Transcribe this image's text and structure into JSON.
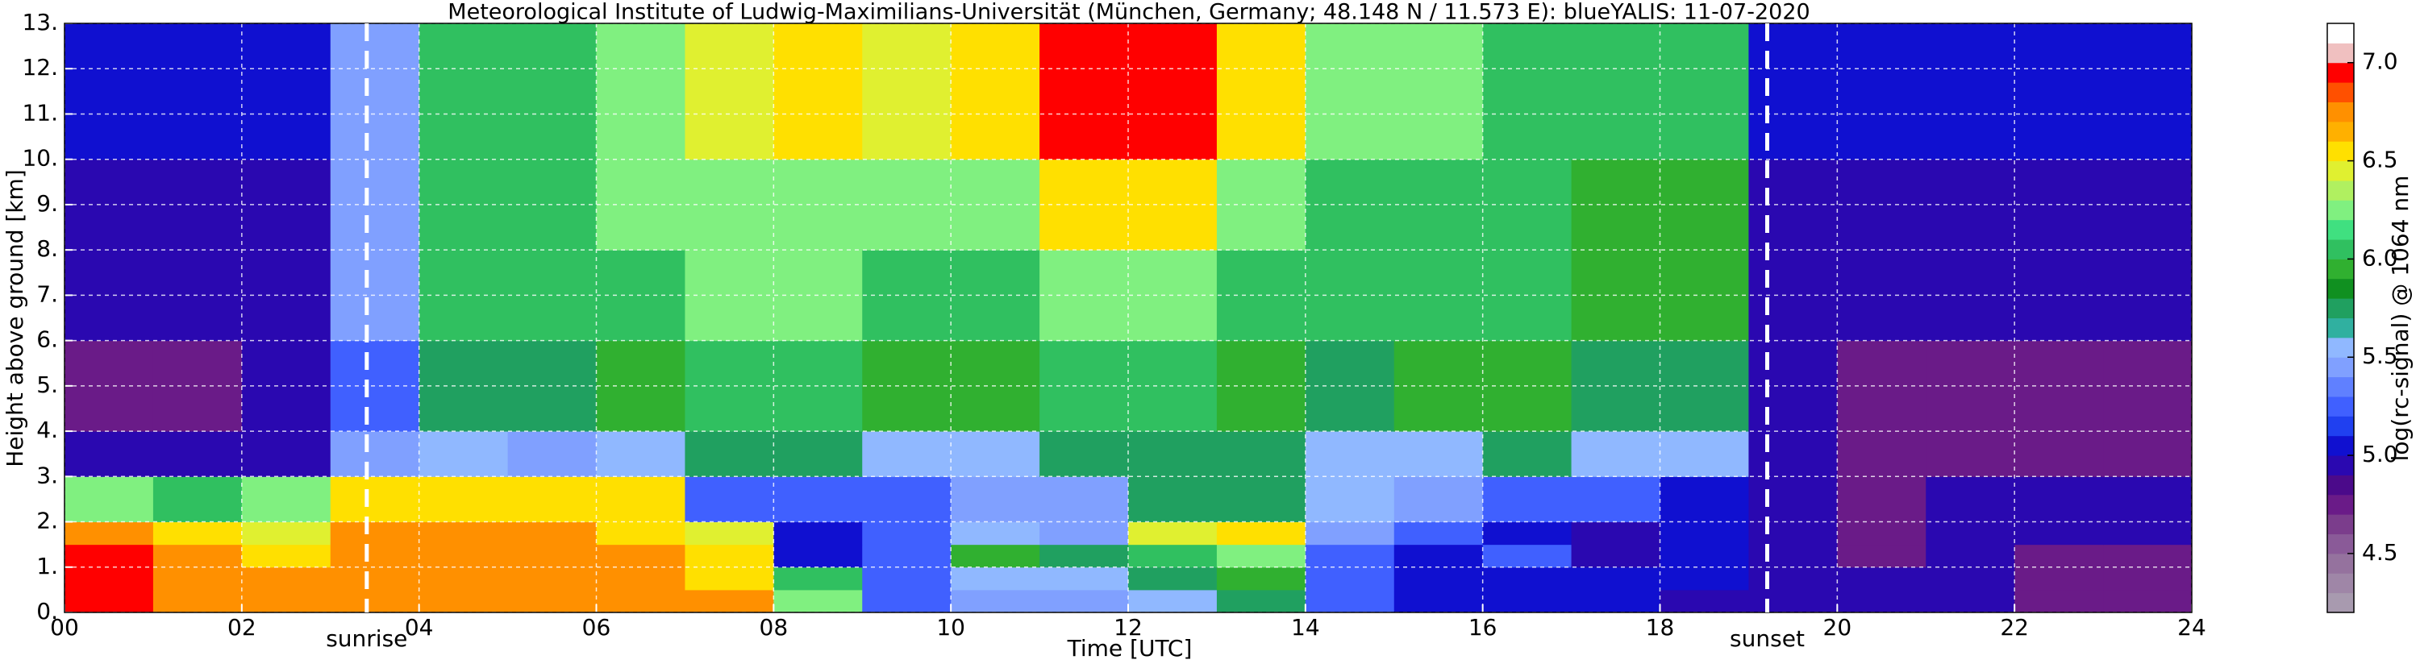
{
  "chart_data": {
    "type": "heatmap",
    "title": "Meteorological Institute of Ludwig-Maximilians-Universität (München, Germany; 48.148 N / 11.573 E):    blueYALIS: 11-07-2020",
    "x_label": "Time [UTC]",
    "y_label": "Height above ground [km]",
    "colorbar_label": "log(rc-signal) @ 1064 nm",
    "xlim": [
      0,
      24
    ],
    "xticks": [
      {
        "value": 0,
        "label": "00"
      },
      {
        "value": 2,
        "label": "02"
      },
      {
        "value": 4,
        "label": "04"
      },
      {
        "value": 6,
        "label": "06"
      },
      {
        "value": 8,
        "label": "08"
      },
      {
        "value": 10,
        "label": "10"
      },
      {
        "value": 12,
        "label": "12"
      },
      {
        "value": 14,
        "label": "14"
      },
      {
        "value": 16,
        "label": "16"
      },
      {
        "value": 18,
        "label": "18"
      },
      {
        "value": 20,
        "label": "20"
      },
      {
        "value": 22,
        "label": "22"
      },
      {
        "value": 24,
        "label": "24"
      }
    ],
    "ylim": [
      0,
      13
    ],
    "yticks": [
      {
        "value": 0,
        "label": "0."
      },
      {
        "value": 1,
        "label": "1."
      },
      {
        "value": 2,
        "label": "2."
      },
      {
        "value": 3,
        "label": "3."
      },
      {
        "value": 4,
        "label": "4."
      },
      {
        "value": 5,
        "label": "5."
      },
      {
        "value": 6,
        "label": "6."
      },
      {
        "value": 7,
        "label": "7."
      },
      {
        "value": 8,
        "label": "8."
      },
      {
        "value": 9,
        "label": "9."
      },
      {
        "value": 10,
        "label": "10."
      },
      {
        "value": 11,
        "label": "11."
      },
      {
        "value": 12,
        "label": "12."
      },
      {
        "value": 13,
        "label": "13."
      }
    ],
    "grid": true,
    "events": [
      {
        "label": "sunrise",
        "time": 3.41
      },
      {
        "label": "sunset",
        "time": 19.21
      }
    ],
    "clim": [
      4.2,
      7.2
    ],
    "cticks": [
      {
        "value": 4.5,
        "label": "4.5"
      },
      {
        "value": 5.0,
        "label": "5.0"
      },
      {
        "value": 5.5,
        "label": "5.5"
      },
      {
        "value": 6.0,
        "label": "6.0"
      },
      {
        "value": 6.5,
        "label": "6.5"
      },
      {
        "value": 7.0,
        "label": "7.0"
      }
    ],
    "colors": [
      "#a89aaf",
      "#9f86a7",
      "#95729e",
      "#8a5a98",
      "#7b3d8c",
      "#6a1b88",
      "#4b0a8a",
      "#2a08b0",
      "#1010d0",
      "#2040f0",
      "#4060ff",
      "#6080ff",
      "#80a0ff",
      "#90b8ff",
      "#30b0a0",
      "#20a060",
      "#109020",
      "#30b030",
      "#30c060",
      "#40e080",
      "#80f080",
      "#b0f060",
      "#e0f030",
      "#ffe000",
      "#ffb000",
      "#ff9000",
      "#ff5000",
      "#ff0000",
      "#f0c0c0",
      "#ffffff"
    ],
    "x_edges": [
      0,
      1,
      2,
      3,
      4,
      5,
      6,
      7,
      8,
      9,
      10,
      11,
      12,
      13,
      14,
      15,
      16,
      17,
      18,
      19,
      20,
      21,
      22,
      23,
      24
    ],
    "y_edges": [
      0,
      0.5,
      1,
      1.5,
      2,
      3,
      4,
      6,
      8,
      10,
      13
    ],
    "z": [
      [
        7.0,
        6.8,
        6.8,
        6.8,
        6.8,
        6.8,
        6.8,
        6.7,
        6.3,
        5.3,
        5.5,
        5.5,
        5.6,
        5.8,
        5.2,
        5.1,
        5.1,
        5.1,
        5.0,
        5.0,
        4.9,
        5.0,
        4.8,
        4.8
      ],
      [
        7.0,
        6.8,
        6.7,
        6.8,
        6.8,
        6.8,
        6.7,
        6.6,
        6.0,
        5.3,
        5.6,
        5.6,
        5.8,
        5.9,
        5.3,
        5.1,
        5.1,
        5.1,
        5.1,
        5.0,
        4.9,
        5.0,
        4.8,
        4.8
      ],
      [
        6.9,
        6.7,
        6.6,
        6.8,
        6.8,
        6.8,
        6.7,
        6.5,
        5.1,
        5.3,
        5.9,
        5.8,
        6.0,
        6.3,
        5.2,
        5.1,
        5.2,
        5.0,
        5.1,
        5.0,
        4.8,
        5.0,
        4.8,
        4.8
      ],
      [
        6.7,
        6.5,
        6.4,
        6.7,
        6.7,
        6.7,
        6.6,
        6.4,
        5.1,
        5.2,
        5.6,
        5.5,
        6.4,
        6.6,
        5.5,
        5.3,
        5.1,
        5.0,
        5.1,
        5.0,
        4.8,
        5.0,
        4.9,
        4.9
      ],
      [
        6.3,
        6.0,
        6.3,
        6.6,
        6.6,
        6.5,
        6.5,
        5.3,
        5.2,
        5.3,
        5.4,
        5.5,
        5.7,
        5.8,
        5.6,
        5.5,
        5.3,
        5.2,
        5.1,
        4.9,
        4.8,
        4.9,
        4.9,
        4.9
      ],
      [
        4.9,
        4.9,
        5.0,
        5.4,
        5.6,
        5.5,
        5.6,
        5.7,
        5.7,
        5.6,
        5.6,
        5.7,
        5.7,
        5.7,
        5.6,
        5.6,
        5.7,
        5.6,
        5.6,
        4.9,
        4.8,
        4.8,
        4.8,
        4.8
      ],
      [
        4.8,
        4.8,
        4.9,
        5.3,
        5.8,
        5.8,
        5.9,
        6.0,
        6.0,
        5.9,
        5.9,
        6.0,
        6.0,
        5.9,
        5.8,
        5.9,
        5.9,
        5.8,
        5.8,
        4.9,
        4.8,
        4.8,
        4.8,
        4.8
      ],
      [
        4.9,
        4.9,
        5.0,
        5.4,
        6.0,
        6.0,
        6.1,
        6.2,
        6.2,
        6.1,
        6.1,
        6.3,
        6.3,
        6.1,
        6.0,
        6.0,
        6.0,
        5.9,
        5.9,
        5.0,
        4.9,
        4.9,
        4.9,
        4.9
      ],
      [
        5.0,
        5.0,
        5.0,
        5.4,
        6.0,
        6.1,
        6.2,
        6.3,
        6.3,
        6.2,
        6.3,
        6.5,
        6.5,
        6.3,
        6.1,
        6.1,
        6.0,
        5.9,
        5.9,
        5.0,
        5.0,
        5.0,
        5.0,
        5.0
      ],
      [
        5.1,
        5.1,
        5.1,
        5.4,
        6.0,
        6.1,
        6.3,
        6.4,
        6.5,
        6.4,
        6.5,
        7.0,
        6.9,
        6.5,
        6.2,
        6.2,
        6.1,
        6.0,
        6.0,
        5.1,
        5.1,
        5.1,
        5.1,
        5.1
      ]
    ]
  }
}
